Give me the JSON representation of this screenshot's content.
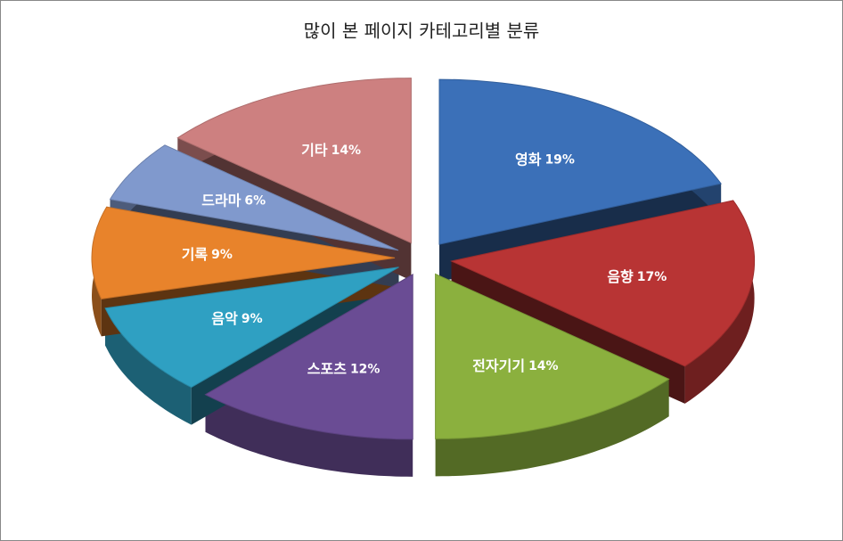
{
  "chart_data": {
    "type": "pie",
    "title": "많이 본 페이지 카테고리별 분류",
    "categories": [
      "영화",
      "음향",
      "전자기기",
      "스포츠",
      "음악",
      "기록",
      "드라마",
      "기타"
    ],
    "values": [
      19,
      17,
      14,
      12,
      9,
      9,
      6,
      14
    ],
    "value_labels": [
      "19%",
      "17%",
      "14%",
      "12%",
      "9%",
      "9%",
      "6%",
      "14%"
    ],
    "colors": [
      "#3b70b8",
      "#b83434",
      "#8bb03e",
      "#6a4c94",
      "#2fa0c2",
      "#e8832b",
      "#8099cd",
      "#cd8080"
    ]
  }
}
